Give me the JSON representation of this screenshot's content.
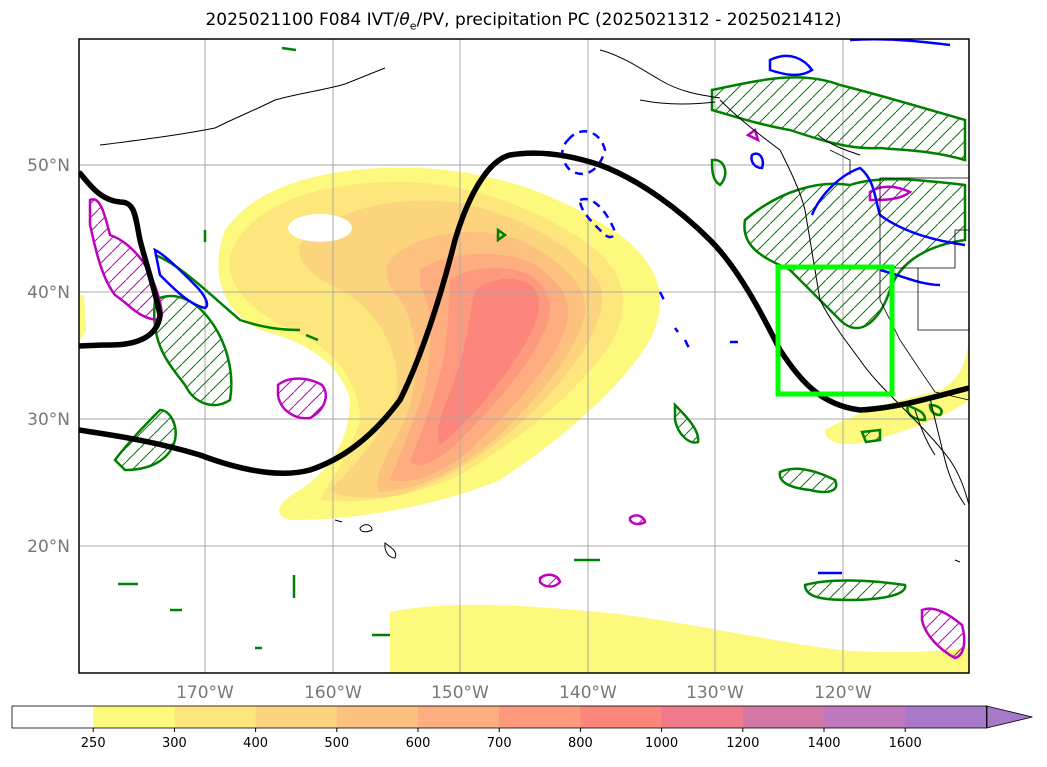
{
  "title": {
    "prefix": "2025021100 F084 IVT/",
    "theta": "θ",
    "theta_sub": "e",
    "suffix": "/PV, precipitation PC (2025021312 - 2025021412)"
  },
  "axes": {
    "lat_labels": [
      "50°N",
      "40°N",
      "30°N",
      "20°N"
    ],
    "lon_labels": [
      "170°W",
      "160°W",
      "150°W",
      "140°W",
      "130°W",
      "120°W"
    ],
    "extent_lon": [
      -180,
      -110
    ],
    "extent_lat": [
      10,
      60
    ],
    "grid": true
  },
  "colorbar": {
    "ticks": [
      "250",
      "300",
      "400",
      "500",
      "600",
      "700",
      "800",
      "1000",
      "1200",
      "1400",
      "1600"
    ],
    "colors": [
      "#ffffff",
      "#fdf97c",
      "#fde77c",
      "#fdd47e",
      "#fdc17f",
      "#fdad7f",
      "#fd997d",
      "#fc857c",
      "#ef7a89",
      "#d577a5",
      "#bf77bd",
      "#a979c9"
    ],
    "extend": "max"
  },
  "colors": {
    "ivt_ridge_contour": "#000000",
    "precip_box": "#00ff00",
    "pv_contour": "#0000ff",
    "theta_e_contour": "#008000",
    "hatch_contour": "#c000c0",
    "coastline": "#000000",
    "grid": "#aaaaaa"
  }
}
